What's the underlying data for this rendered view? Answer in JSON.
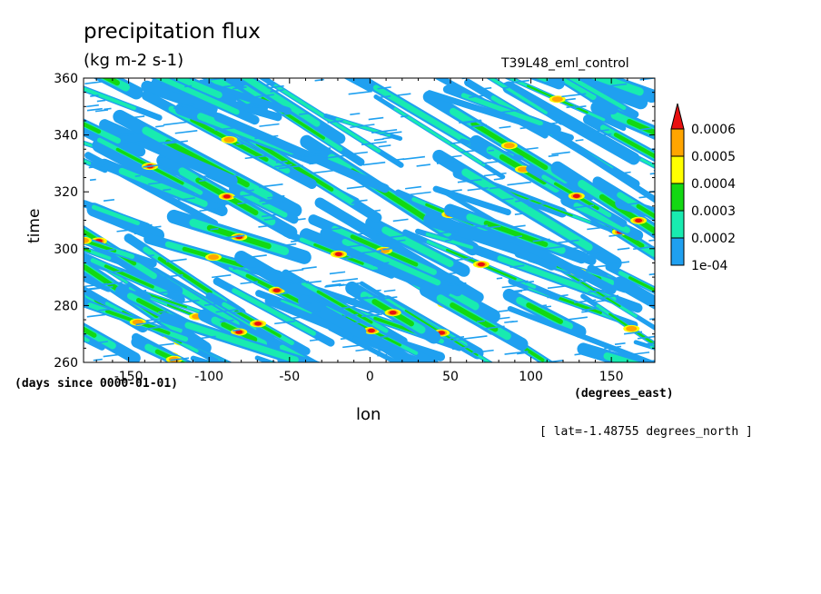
{
  "chart_data": {
    "type": "heatmap",
    "title": "precipitation flux",
    "units": "(kg m-2 s-1)",
    "run_label": "T39L48_eml_control",
    "xlabel": "lon",
    "ylabel": "time",
    "x_units": "(degrees_east)",
    "y_units": "(days since 0000-01-01)",
    "annotation": "[ lat=-1.48755 degrees_north ]",
    "xlim": [
      -178,
      177
    ],
    "ylim": [
      260,
      360
    ],
    "x_ticks": [
      -150,
      -100,
      -50,
      0,
      50,
      100,
      150
    ],
    "x_tick_labels": [
      "-150",
      "-100",
      "-50",
      "0",
      "50",
      "100",
      "150"
    ],
    "y_ticks": [
      260,
      280,
      300,
      320,
      340,
      360
    ],
    "y_tick_labels": [
      "260",
      "280",
      "300",
      "320",
      "340",
      "360"
    ],
    "colorbar": {
      "levels": [
        "1e-04",
        "0.0002",
        "0.0003",
        "0.0004",
        "0.0005",
        "0.0006"
      ],
      "colors": [
        "#1fa0f0",
        "#18ebb0",
        "#13d813",
        "#ffff00",
        "#ffa500",
        "#e81010"
      ],
      "extend": "max",
      "placement": "right"
    },
    "grid": false
  }
}
